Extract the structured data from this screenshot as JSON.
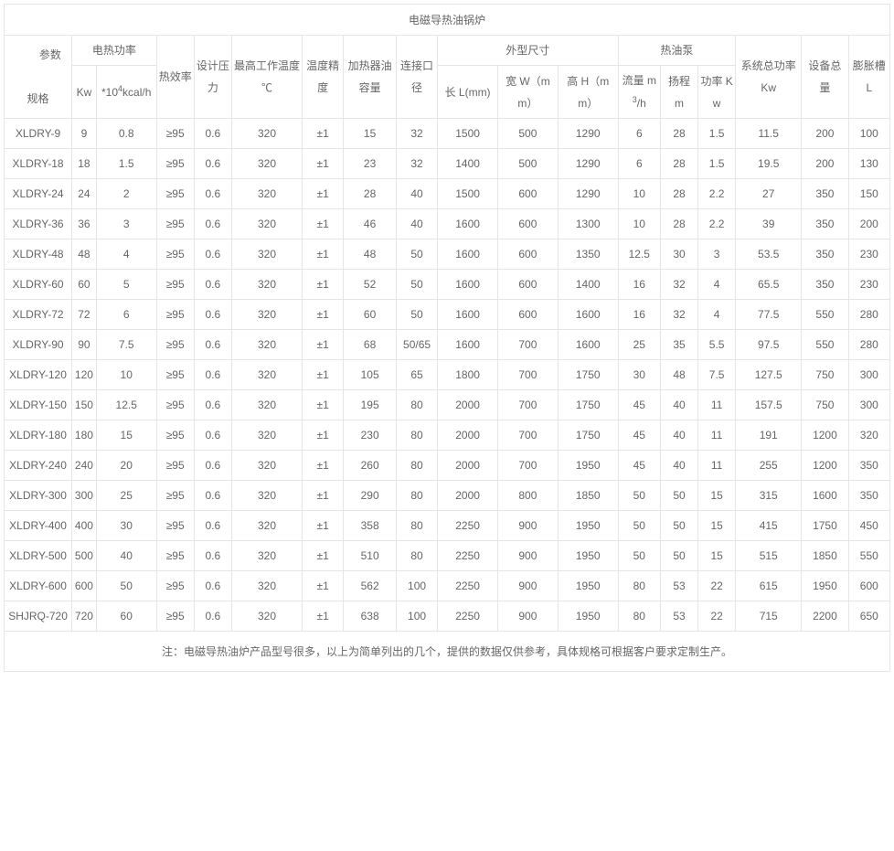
{
  "title": "电磁导热油锅炉",
  "corner": "参数\n规格",
  "headers": {
    "power_group": "电热功率",
    "power_kw": "Kw",
    "power_kcal": "*10⁴kcal/h",
    "efficiency": "热效率",
    "pressure": "设计压力",
    "max_temp": "最高工作温度 ℃",
    "temp_precision": "温度精度",
    "oil_capacity": "加热器油容量",
    "conn_diameter": "连接口径",
    "size_group": "外型尺寸",
    "size_l": "长 L(mm)",
    "size_w": "宽 W（mm）",
    "size_h": "高 H（mm）",
    "pump_group": "热油泵",
    "pump_flow": "流量 m³/h",
    "pump_head": "扬程 m",
    "pump_power": "功率 Kw",
    "sys_power": "系统总功率 Kw",
    "total_weight": "设备总量",
    "exp_tank": "膨胀槽 L"
  },
  "rows": [
    {
      "m": "XLDRY-9",
      "kw": "9",
      "kcal": "0.8",
      "eff": "≥95",
      "p": "0.6",
      "t": "320",
      "tp": "±1",
      "oc": "15",
      "cd": "32",
      "l": "1500",
      "w": "500",
      "h": "1290",
      "pf": "6",
      "ph": "28",
      "pp": "1.5",
      "sp": "11.5",
      "tw": "200",
      "et": "100"
    },
    {
      "m": "XLDRY-18",
      "kw": "18",
      "kcal": "1.5",
      "eff": "≥95",
      "p": "0.6",
      "t": "320",
      "tp": "±1",
      "oc": "23",
      "cd": "32",
      "l": "1400",
      "w": "500",
      "h": "1290",
      "pf": "6",
      "ph": "28",
      "pp": "1.5",
      "sp": "19.5",
      "tw": "200",
      "et": "130"
    },
    {
      "m": "XLDRY-24",
      "kw": "24",
      "kcal": "2",
      "eff": "≥95",
      "p": "0.6",
      "t": "320",
      "tp": "±1",
      "oc": "28",
      "cd": "40",
      "l": "1500",
      "w": "600",
      "h": "1290",
      "pf": "10",
      "ph": "28",
      "pp": "2.2",
      "sp": "27",
      "tw": "350",
      "et": "150"
    },
    {
      "m": "XLDRY-36",
      "kw": "36",
      "kcal": "3",
      "eff": "≥95",
      "p": "0.6",
      "t": "320",
      "tp": "±1",
      "oc": "46",
      "cd": "40",
      "l": "1600",
      "w": "600",
      "h": "1300",
      "pf": "10",
      "ph": "28",
      "pp": "2.2",
      "sp": "39",
      "tw": "350",
      "et": "200"
    },
    {
      "m": "XLDRY-48",
      "kw": "48",
      "kcal": "4",
      "eff": "≥95",
      "p": "0.6",
      "t": "320",
      "tp": "±1",
      "oc": "48",
      "cd": "50",
      "l": "1600",
      "w": "600",
      "h": "1350",
      "pf": "12.5",
      "ph": "30",
      "pp": "3",
      "sp": "53.5",
      "tw": "350",
      "et": "230"
    },
    {
      "m": "XLDRY-60",
      "kw": "60",
      "kcal": "5",
      "eff": "≥95",
      "p": "0.6",
      "t": "320",
      "tp": "±1",
      "oc": "52",
      "cd": "50",
      "l": "1600",
      "w": "600",
      "h": "1400",
      "pf": "16",
      "ph": "32",
      "pp": "4",
      "sp": "65.5",
      "tw": "350",
      "et": "230"
    },
    {
      "m": "XLDRY-72",
      "kw": "72",
      "kcal": "6",
      "eff": "≥95",
      "p": "0.6",
      "t": "320",
      "tp": "±1",
      "oc": "60",
      "cd": "50",
      "l": "1600",
      "w": "600",
      "h": "1600",
      "pf": "16",
      "ph": "32",
      "pp": "4",
      "sp": "77.5",
      "tw": "550",
      "et": "280"
    },
    {
      "m": "XLDRY-90",
      "kw": "90",
      "kcal": "7.5",
      "eff": "≥95",
      "p": "0.6",
      "t": "320",
      "tp": "±1",
      "oc": "68",
      "cd": "50/65",
      "l": "1600",
      "w": "700",
      "h": "1600",
      "pf": "25",
      "ph": "35",
      "pp": "5.5",
      "sp": "97.5",
      "tw": "550",
      "et": "280"
    },
    {
      "m": "XLDRY-120",
      "kw": "120",
      "kcal": "10",
      "eff": "≥95",
      "p": "0.6",
      "t": "320",
      "tp": "±1",
      "oc": "105",
      "cd": "65",
      "l": "1800",
      "w": "700",
      "h": "1750",
      "pf": "30",
      "ph": "48",
      "pp": "7.5",
      "sp": "127.5",
      "tw": "750",
      "et": "300"
    },
    {
      "m": "XLDRY-150",
      "kw": "150",
      "kcal": "12.5",
      "eff": "≥95",
      "p": "0.6",
      "t": "320",
      "tp": "±1",
      "oc": "195",
      "cd": "80",
      "l": "2000",
      "w": "700",
      "h": "1750",
      "pf": "45",
      "ph": "40",
      "pp": "11",
      "sp": "157.5",
      "tw": "750",
      "et": "300"
    },
    {
      "m": "XLDRY-180",
      "kw": "180",
      "kcal": "15",
      "eff": "≥95",
      "p": "0.6",
      "t": "320",
      "tp": "±1",
      "oc": "230",
      "cd": "80",
      "l": "2000",
      "w": "700",
      "h": "1750",
      "pf": "45",
      "ph": "40",
      "pp": "11",
      "sp": "191",
      "tw": "1200",
      "et": "320"
    },
    {
      "m": "XLDRY-240",
      "kw": "240",
      "kcal": "20",
      "eff": "≥95",
      "p": "0.6",
      "t": "320",
      "tp": "±1",
      "oc": "260",
      "cd": "80",
      "l": "2000",
      "w": "700",
      "h": "1950",
      "pf": "45",
      "ph": "40",
      "pp": "11",
      "sp": "255",
      "tw": "1200",
      "et": "350"
    },
    {
      "m": "XLDRY-300",
      "kw": "300",
      "kcal": "25",
      "eff": "≥95",
      "p": "0.6",
      "t": "320",
      "tp": "±1",
      "oc": "290",
      "cd": "80",
      "l": "2000",
      "w": "800",
      "h": "1850",
      "pf": "50",
      "ph": "50",
      "pp": "15",
      "sp": "315",
      "tw": "1600",
      "et": "350"
    },
    {
      "m": "XLDRY-400",
      "kw": "400",
      "kcal": "30",
      "eff": "≥95",
      "p": "0.6",
      "t": "320",
      "tp": "±1",
      "oc": "358",
      "cd": "80",
      "l": "2250",
      "w": "900",
      "h": "1950",
      "pf": "50",
      "ph": "50",
      "pp": "15",
      "sp": "415",
      "tw": "1750",
      "et": "450"
    },
    {
      "m": "XLDRY-500",
      "kw": "500",
      "kcal": "40",
      "eff": "≥95",
      "p": "0.6",
      "t": "320",
      "tp": "±1",
      "oc": "510",
      "cd": "80",
      "l": "2250",
      "w": "900",
      "h": "1950",
      "pf": "50",
      "ph": "50",
      "pp": "15",
      "sp": "515",
      "tw": "1850",
      "et": "550"
    },
    {
      "m": "XLDRY-600",
      "kw": "600",
      "kcal": "50",
      "eff": "≥95",
      "p": "0.6",
      "t": "320",
      "tp": "±1",
      "oc": "562",
      "cd": "100",
      "l": "2250",
      "w": "900",
      "h": "1950",
      "pf": "80",
      "ph": "53",
      "pp": "22",
      "sp": "615",
      "tw": "1950",
      "et": "600"
    },
    {
      "m": "SHJRQ-720",
      "kw": "720",
      "kcal": "60",
      "eff": "≥95",
      "p": "0.6",
      "t": "320",
      "tp": "±1",
      "oc": "638",
      "cd": "100",
      "l": "2250",
      "w": "900",
      "h": "1950",
      "pf": "80",
      "ph": "53",
      "pp": "22",
      "sp": "715",
      "tw": "2200",
      "et": "650"
    }
  ],
  "note": "注：电磁导热油炉产品型号很多，以上为简单列出的几个，提供的数据仅供参考，具体规格可根据客户要求定制生产。",
  "colwidths": [
    "7.2%",
    "2.6%",
    "6.4%",
    "4%",
    "4%",
    "7.5%",
    "4.4%",
    "5.6%",
    "4.4%",
    "6.4%",
    "6.4%",
    "6.4%",
    "4.5%",
    "4%",
    "4%",
    "7%",
    "5%",
    "4.4%"
  ]
}
